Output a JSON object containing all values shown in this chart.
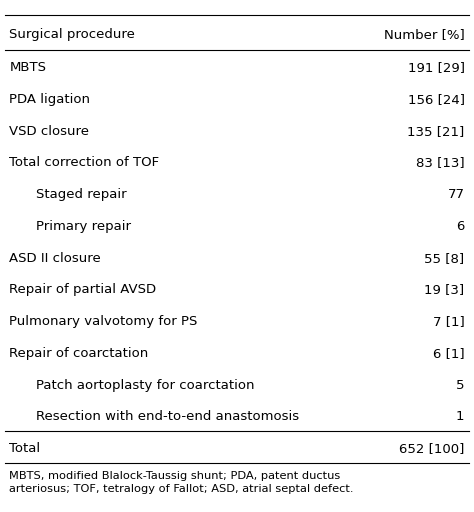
{
  "title_left": "Surgical procedure",
  "title_right": "Number [%]",
  "rows": [
    {
      "label": "MBTS",
      "value": "191 [29]",
      "indent": 0
    },
    {
      "label": "PDA ligation",
      "value": "156 [24]",
      "indent": 0
    },
    {
      "label": "VSD closure",
      "value": "135 [21]",
      "indent": 0
    },
    {
      "label": "Total correction of TOF",
      "value": "83 [13]",
      "indent": 0
    },
    {
      "label": "Staged repair",
      "value": "77",
      "indent": 1
    },
    {
      "label": "Primary repair",
      "value": "6",
      "indent": 1
    },
    {
      "label": "ASD II closure",
      "value": "55 [8]",
      "indent": 0
    },
    {
      "label": "Repair of partial AVSD",
      "value": "19 [3]",
      "indent": 0
    },
    {
      "label": "Pulmonary valvotomy for PS",
      "value": "7 [1]",
      "indent": 0
    },
    {
      "label": "Repair of coarctation",
      "value": "6 [1]",
      "indent": 0
    },
    {
      "label": "Patch aortoplasty for coarctation",
      "value": "5",
      "indent": 1
    },
    {
      "label": "Resection with end-to-end anastomosis",
      "value": "1",
      "indent": 1
    },
    {
      "label": "Total",
      "value": "652 [100]",
      "indent": 0
    }
  ],
  "footnote": "MBTS, modified Blalock-Taussig shunt; PDA, patent ductus\narteriosus; TOF, tetralogy of Fallot; ASD, atrial septal defect.",
  "bg_color": "#ffffff",
  "text_color": "#000000",
  "line_color": "#000000",
  "header_fontsize": 9.5,
  "row_fontsize": 9.5,
  "footnote_fontsize": 8.2,
  "indent_amount": 0.055
}
